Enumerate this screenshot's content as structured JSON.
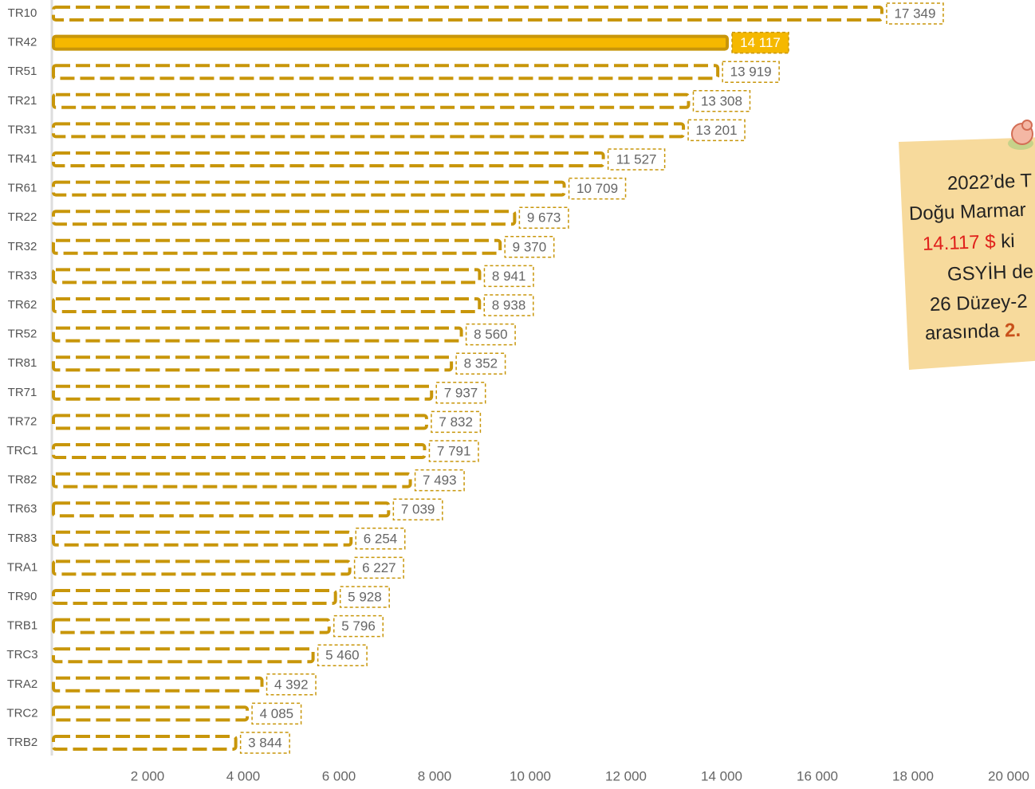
{
  "chart_data": {
    "type": "barh",
    "categories": [
      "TR10",
      "TR42",
      "TR51",
      "TR21",
      "TR31",
      "TR41",
      "TR61",
      "TR22",
      "TR32",
      "TR33",
      "TR62",
      "TR52",
      "TR81",
      "TR71",
      "TR72",
      "TRC1",
      "TR82",
      "TR63",
      "TR83",
      "TRA1",
      "TR90",
      "TRB1",
      "TRC3",
      "TRA2",
      "TRC2",
      "TRB2"
    ],
    "values": [
      17349,
      14117,
      13919,
      13308,
      13201,
      11527,
      10709,
      9673,
      9370,
      8941,
      8938,
      8560,
      8352,
      7937,
      7832,
      7791,
      7493,
      7039,
      6254,
      6227,
      5928,
      5796,
      5460,
      4392,
      4085,
      3844
    ],
    "value_labels": [
      "17 349",
      "14 117",
      "13 919",
      "13 308",
      "13 201",
      "11 527",
      "10 709",
      "9 673",
      "9 370",
      "8 941",
      "8 938",
      "8 560",
      "8 352",
      "7 937",
      "7 832",
      "7 791",
      "7 493",
      "7 039",
      "6 254",
      "6 227",
      "5 928",
      "5 796",
      "5 460",
      "4 392",
      "4 085",
      "3 844"
    ],
    "fill_colors": [
      "#ffffff",
      "#f5b800",
      "#ffffff",
      "#ffffff",
      "#ffffff",
      "#ffffff",
      "#ffffff",
      "#ffffff",
      "#ffffff",
      "#ffffff",
      "#ffffff",
      "#ffffff",
      "#ffffff",
      "#ffffff",
      "#ffffff",
      "#ffffff",
      "#ffffff",
      "#ffffff",
      "#ffffff",
      "#ffffff",
      "#ffffff",
      "#ffffff",
      "#ffffff",
      "#ffffff",
      "#ffffff",
      "#ffffff"
    ],
    "border_color": "#c8960a",
    "xlim": [
      0,
      20000
    ],
    "xticks": [
      {
        "value": 2000,
        "label": "2 000"
      },
      {
        "value": 4000,
        "label": "4 000"
      },
      {
        "value": 6000,
        "label": "6 000"
      },
      {
        "value": 8000,
        "label": "8 000"
      },
      {
        "value": 10000,
        "label": "10 000"
      },
      {
        "value": 12000,
        "label": "12 000"
      },
      {
        "value": 14000,
        "label": "14 000"
      },
      {
        "value": 16000,
        "label": "16 000"
      },
      {
        "value": 18000,
        "label": "18 000"
      },
      {
        "value": 20000,
        "label": "20 000"
      }
    ],
    "annotation_lines": [
      [
        {
          "text": "2022’de T",
          "color": "#222222"
        }
      ],
      [
        {
          "text": "Doğu Marmar",
          "color": "#222222"
        }
      ],
      [
        {
          "text": "14.117 $",
          "color": "#e0201b"
        },
        {
          "text": " ki",
          "color": "#222222"
        }
      ],
      [
        {
          "text": "GSYİH de",
          "color": "#222222"
        }
      ],
      [
        {
          "text": "26 Düzey-2",
          "color": "#222222"
        }
      ],
      [
        {
          "text": "arasında ",
          "color": "#222222"
        },
        {
          "text": "2.",
          "color": "#c8501a"
        }
      ]
    ]
  }
}
